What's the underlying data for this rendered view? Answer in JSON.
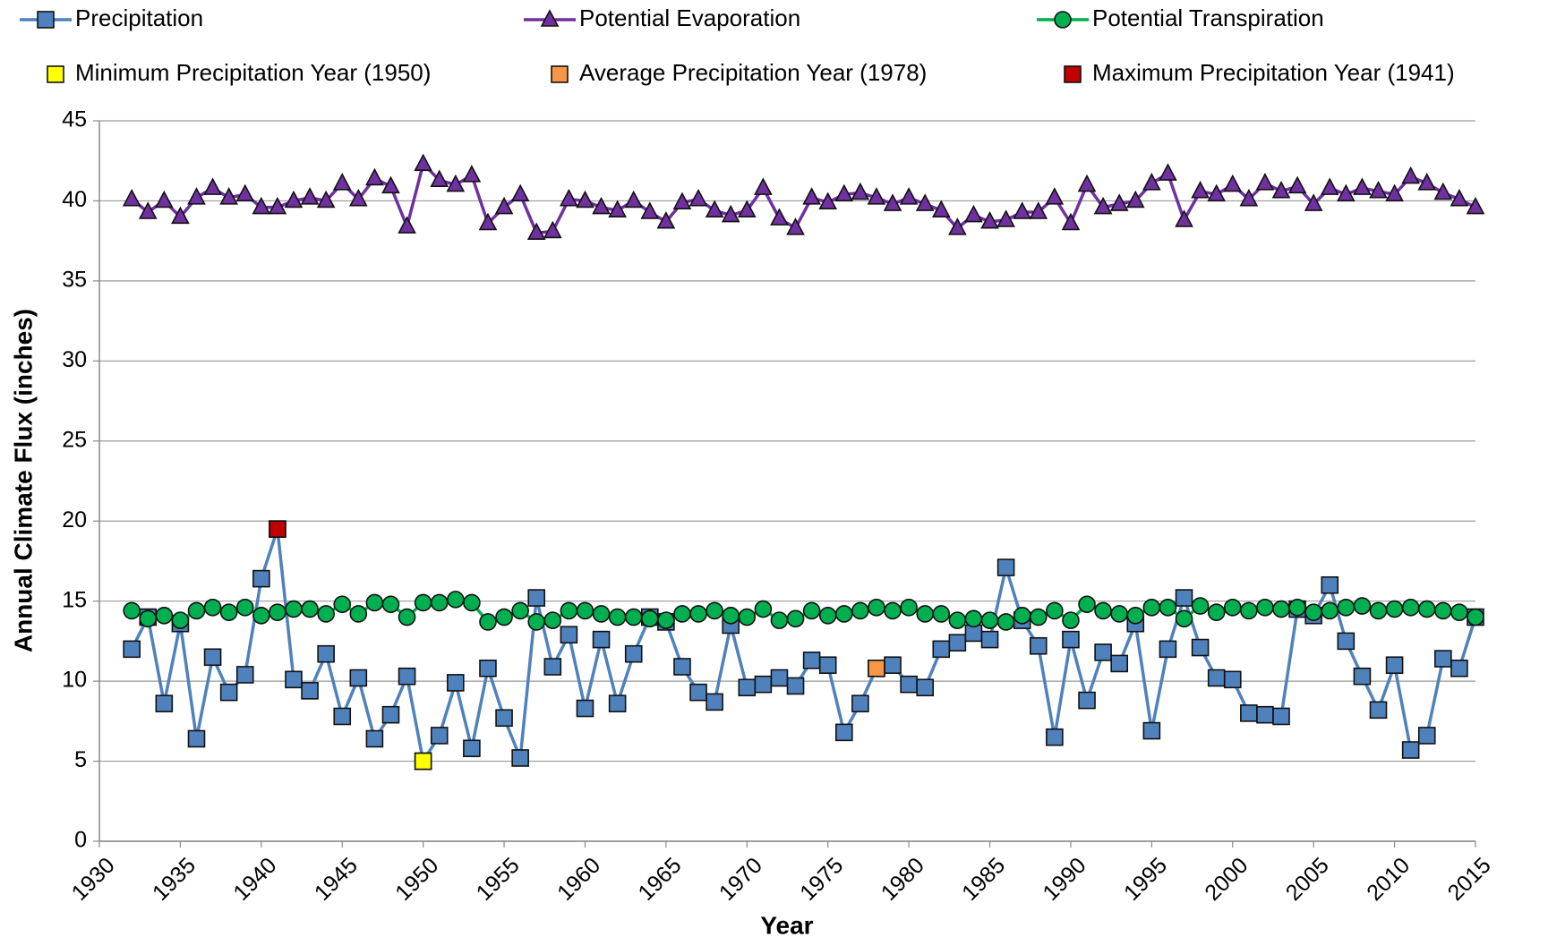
{
  "chart_data": {
    "type": "line",
    "x_label": "Year",
    "y_label": "Annual Climate Flux (inches)",
    "x": [
      1932,
      1933,
      1934,
      1935,
      1936,
      1937,
      1938,
      1939,
      1940,
      1941,
      1942,
      1943,
      1944,
      1945,
      1946,
      1947,
      1948,
      1949,
      1950,
      1951,
      1952,
      1953,
      1954,
      1955,
      1956,
      1957,
      1958,
      1959,
      1960,
      1961,
      1962,
      1963,
      1964,
      1965,
      1966,
      1967,
      1968,
      1969,
      1970,
      1971,
      1972,
      1973,
      1974,
      1975,
      1976,
      1977,
      1978,
      1979,
      1980,
      1981,
      1982,
      1983,
      1984,
      1985,
      1986,
      1987,
      1988,
      1989,
      1990,
      1991,
      1992,
      1993,
      1994,
      1995,
      1996,
      1997,
      1998,
      1999,
      2000,
      2001,
      2002,
      2003,
      2004,
      2005,
      2006,
      2007,
      2008,
      2009,
      2010,
      2011,
      2012,
      2013,
      2014,
      2015
    ],
    "series": [
      {
        "name": "Precipitation",
        "color": "#4f81bd",
        "marker": "square",
        "values": [
          12.0,
          14.0,
          8.6,
          13.6,
          6.4,
          11.5,
          9.3,
          10.4,
          16.4,
          19.5,
          10.1,
          9.4,
          11.7,
          7.8,
          10.2,
          6.4,
          7.9,
          10.3,
          5.0,
          6.6,
          9.9,
          5.8,
          10.8,
          7.7,
          5.2,
          15.2,
          10.9,
          12.9,
          8.3,
          12.6,
          8.6,
          11.7,
          14.0,
          13.7,
          10.9,
          9.3,
          8.7,
          13.5,
          9.6,
          9.8,
          10.2,
          9.7,
          11.3,
          11.0,
          6.8,
          8.6,
          10.8,
          11.0,
          9.8,
          9.6,
          12.0,
          12.4,
          13.0,
          12.6,
          17.1,
          13.8,
          12.2,
          6.5,
          12.6,
          8.8,
          11.8,
          11.1,
          13.6,
          6.9,
          12.0,
          15.2,
          12.1,
          10.2,
          10.1,
          8.0,
          7.9,
          7.8,
          14.5,
          14.1,
          16.0,
          12.5,
          10.3,
          8.2,
          11.0,
          5.7,
          6.6,
          11.4,
          10.8,
          14.0
        ]
      },
      {
        "name": "Potential Evaporation",
        "color": "#7030a0",
        "marker": "triangle",
        "values": [
          40.1,
          39.3,
          40.0,
          39.0,
          40.2,
          40.8,
          40.2,
          40.4,
          39.6,
          39.6,
          40.0,
          40.2,
          40.0,
          41.1,
          40.1,
          41.4,
          40.9,
          38.4,
          42.3,
          41.3,
          41.0,
          41.6,
          38.6,
          39.6,
          40.4,
          38.0,
          38.1,
          40.1,
          40.0,
          39.6,
          39.4,
          40.0,
          39.3,
          38.7,
          39.9,
          40.1,
          39.4,
          39.1,
          39.4,
          40.8,
          38.9,
          38.3,
          40.2,
          39.9,
          40.4,
          40.5,
          40.2,
          39.8,
          40.2,
          39.8,
          39.4,
          38.3,
          39.1,
          38.7,
          38.8,
          39.3,
          39.3,
          40.2,
          38.6,
          41.0,
          39.6,
          39.8,
          40.0,
          41.1,
          41.7,
          38.8,
          40.6,
          40.4,
          41.0,
          40.1,
          41.1,
          40.6,
          40.9,
          39.8,
          40.8,
          40.4,
          40.8,
          40.6,
          40.4,
          41.5,
          41.1,
          40.5,
          40.1,
          39.6
        ]
      },
      {
        "name": "Potential Transpiration",
        "color": "#00b050",
        "marker": "circle",
        "values": [
          14.4,
          13.9,
          14.1,
          13.8,
          14.4,
          14.6,
          14.3,
          14.6,
          14.1,
          14.3,
          14.5,
          14.5,
          14.2,
          14.8,
          14.2,
          14.9,
          14.8,
          14.0,
          14.9,
          14.9,
          15.1,
          14.9,
          13.7,
          14.0,
          14.4,
          13.7,
          13.8,
          14.4,
          14.4,
          14.2,
          14.0,
          14.0,
          13.9,
          13.8,
          14.2,
          14.2,
          14.4,
          14.1,
          14.0,
          14.5,
          13.8,
          13.9,
          14.4,
          14.1,
          14.2,
          14.4,
          14.6,
          14.4,
          14.6,
          14.2,
          14.2,
          13.8,
          13.9,
          13.8,
          13.7,
          14.1,
          14.0,
          14.4,
          13.8,
          14.8,
          14.4,
          14.2,
          14.1,
          14.6,
          14.6,
          13.9,
          14.7,
          14.3,
          14.6,
          14.4,
          14.6,
          14.5,
          14.6,
          14.3,
          14.4,
          14.6,
          14.7,
          14.4,
          14.5,
          14.6,
          14.5,
          14.4,
          14.3,
          14.0
        ]
      },
      {
        "name": "Minimum Precipitation Year (1950)",
        "color": "#ffff00",
        "marker": "square",
        "x": [
          1950
        ],
        "values": [
          5.0
        ]
      },
      {
        "name": "Average Precipitation Year (1978)",
        "color": "#f79646",
        "marker": "square",
        "x": [
          1978
        ],
        "values": [
          10.8
        ]
      },
      {
        "name": "Maximum Precipitation Year (1941)",
        "color": "#c00000",
        "marker": "square",
        "x": [
          1941
        ],
        "values": [
          19.5
        ]
      }
    ],
    "xlim": [
      1930,
      2015
    ],
    "xticks": [
      1930,
      1935,
      1940,
      1945,
      1950,
      1955,
      1960,
      1965,
      1970,
      1975,
      1980,
      1985,
      1990,
      1995,
      2000,
      2005,
      2010,
      2015
    ],
    "ylim": [
      0,
      45
    ],
    "yticks": [
      0,
      5,
      10,
      15,
      20,
      25,
      30,
      35,
      40,
      45
    ],
    "grid": true
  }
}
